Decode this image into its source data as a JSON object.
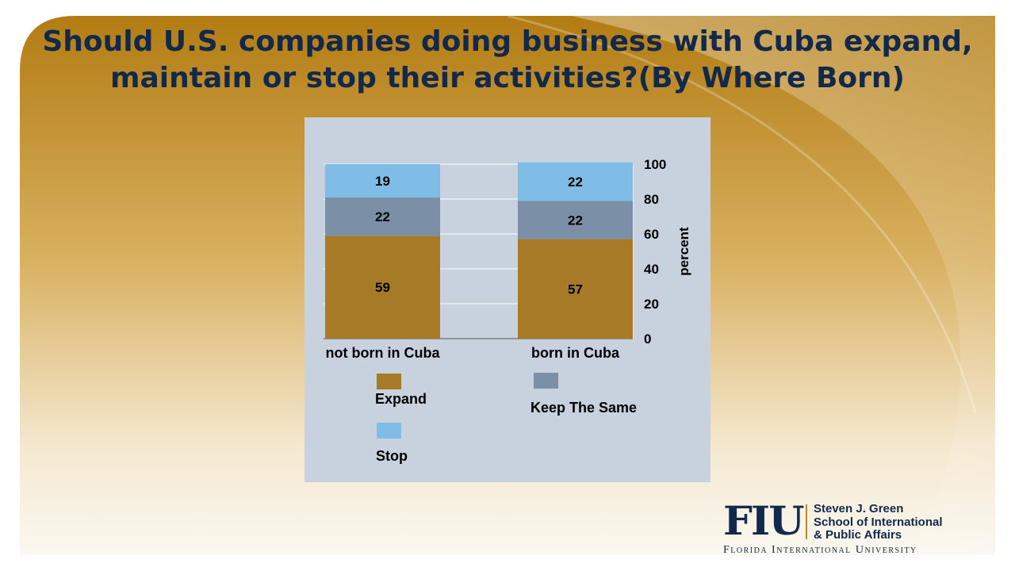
{
  "title_lines": [
    "Should U.S. companies doing business with Cuba expand,",
    "maintain or stop their activities?(By Where Born)"
  ],
  "colors": {
    "title": "#13294b",
    "expand": "#a67a26",
    "keep_the_same": "#7b90a6",
    "stop": "#80bde6",
    "plot_background": "#c7d2de",
    "gold": "#b8862a"
  },
  "chart_data": {
    "type": "bar",
    "stacked": true,
    "categories": [
      "not born in Cuba",
      "born in Cuba"
    ],
    "series": [
      {
        "name": "Expand",
        "values": [
          59,
          57
        ]
      },
      {
        "name": "Keep The Same",
        "values": [
          22,
          22
        ]
      },
      {
        "name": "Stop",
        "values": [
          19,
          22
        ]
      }
    ],
    "ylabel": "percent",
    "ylim": [
      0,
      100
    ],
    "yticks": [
      0,
      20,
      40,
      60,
      80,
      100
    ],
    "y_axis_side": "right",
    "grid": true,
    "legend": "bottom"
  },
  "logo": {
    "mark": "FIU",
    "school_lines": [
      "Steven J. Green",
      "School of International",
      "& Public Affairs"
    ],
    "university": "Florida International University"
  }
}
